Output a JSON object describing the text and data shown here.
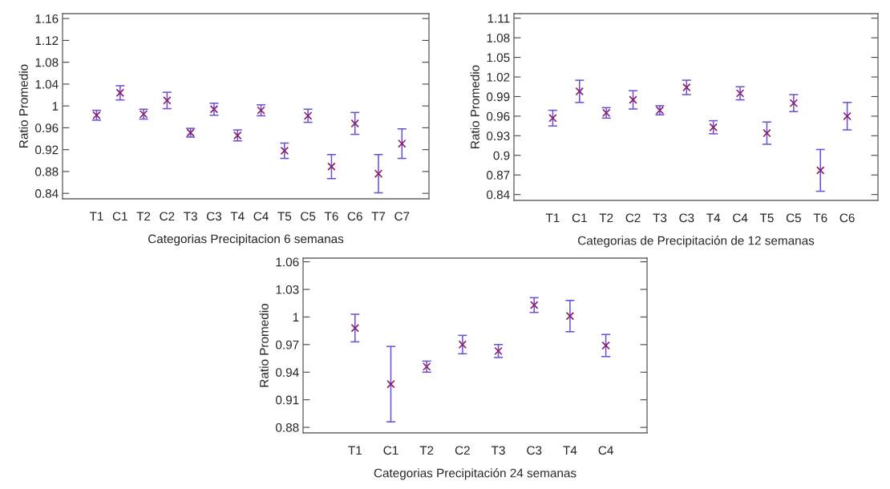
{
  "chart_data": [
    {
      "type": "scatter",
      "xlabel": "Categorias Precipitacion 6 semanas",
      "ylabel": "Ratio Promedio",
      "categories": [
        "T1",
        "C1",
        "T2",
        "C2",
        "T3",
        "C3",
        "T4",
        "C4",
        "T5",
        "C5",
        "T6",
        "C6",
        "T7",
        "C7"
      ],
      "series": [
        {
          "color": "#8a1f6a",
          "values": [
            0.983,
            1.024,
            0.985,
            1.01,
            0.951,
            0.994,
            0.946,
            0.992,
            0.918,
            0.982,
            0.889,
            0.968,
            0.876,
            0.931
          ],
          "errors": [
            0.009,
            0.013,
            0.009,
            0.015,
            0.008,
            0.011,
            0.01,
            0.01,
            0.014,
            0.012,
            0.022,
            0.02,
            0.035,
            0.027
          ]
        }
      ],
      "ylim": [
        0.83,
        1.169
      ],
      "yticks": [
        0.84,
        0.88,
        0.92,
        0.96,
        1,
        1.04,
        1.08,
        1.12,
        1.16
      ],
      "marker": "cross",
      "grid": false
    },
    {
      "type": "scatter",
      "xlabel": "Categorias de Precipitación de 12 semanas",
      "ylabel": "Ratio Promedio",
      "categories": [
        "T1",
        "C1",
        "T2",
        "C2",
        "T3",
        "C3",
        "T4",
        "C4",
        "T5",
        "C5",
        "T6",
        "C6"
      ],
      "series": [
        {
          "color": "#8a1f6a",
          "values": [
            0.957,
            0.998,
            0.965,
            0.985,
            0.969,
            1.004,
            0.943,
            0.995,
            0.934,
            0.98,
            0.877,
            0.96
          ],
          "errors": [
            0.012,
            0.017,
            0.008,
            0.014,
            0.007,
            0.011,
            0.01,
            0.01,
            0.017,
            0.013,
            0.032,
            0.021
          ]
        }
      ],
      "ylim": [
        0.831,
        1.117
      ],
      "yticks": [
        0.84,
        0.87,
        0.9,
        0.93,
        0.96,
        0.99,
        1.02,
        1.05,
        1.08,
        1.11
      ],
      "marker": "cross",
      "grid": false
    },
    {
      "type": "scatter",
      "xlabel": "Categorias Precipitación 24 semanas",
      "ylabel": "Ratio Promedio",
      "categories": [
        "T1",
        "C1",
        "T2",
        "C2",
        "T3",
        "C3",
        "T4",
        "C4"
      ],
      "series": [
        {
          "color": "#8a1f6a",
          "values": [
            0.988,
            0.927,
            0.946,
            0.97,
            0.963,
            1.013,
            1.001,
            0.969
          ],
          "errors": [
            0.015,
            0.041,
            0.006,
            0.01,
            0.007,
            0.008,
            0.017,
            0.012
          ]
        }
      ],
      "ylim": [
        0.874,
        1.064
      ],
      "yticks": [
        0.88,
        0.91,
        0.94,
        0.97,
        1,
        1.03,
        1.06
      ],
      "marker": "cross",
      "grid": false
    }
  ]
}
